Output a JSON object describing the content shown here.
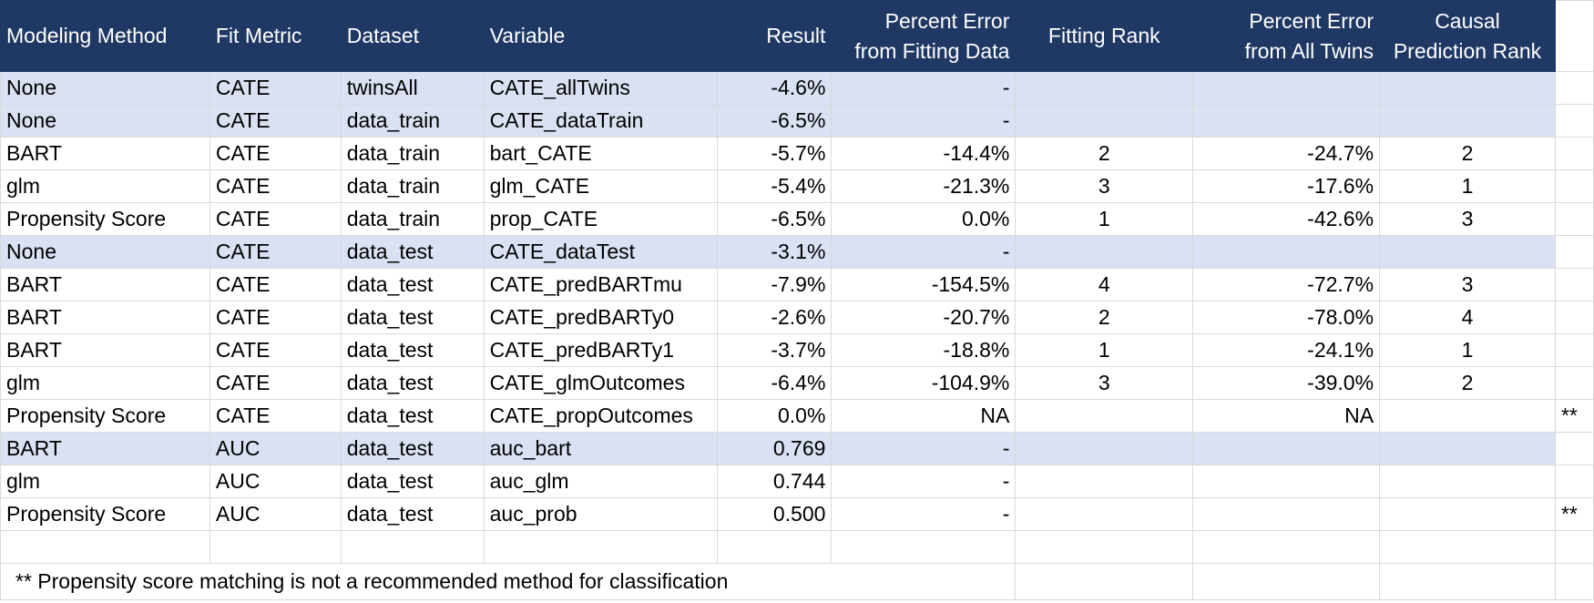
{
  "headers": [
    "Modeling Method",
    "Fit Metric",
    "Dataset",
    "Variable",
    "Result",
    "Percent Error from Fitting Data",
    "Fitting Rank",
    "Percent Error from All Twins",
    "Causal Prediction Rank"
  ],
  "header_lines": {
    "percent_error_fitting": [
      "Percent Error",
      "from Fitting Data"
    ],
    "percent_error_all": [
      "Percent Error",
      "from All Twins"
    ],
    "causal_rank": [
      "Causal",
      "Prediction Rank"
    ]
  },
  "rows": [
    {
      "method": "None",
      "metric": "CATE",
      "dataset": "twinsAll",
      "variable": "CATE_allTwins",
      "result": "-4.6%",
      "pe_fit": "-",
      "fit_rank": "",
      "pe_all": "",
      "causal_rank": "",
      "note": "",
      "shaded": true
    },
    {
      "method": "None",
      "metric": "CATE",
      "dataset": "data_train",
      "variable": "CATE_dataTrain",
      "result": "-6.5%",
      "pe_fit": "-",
      "fit_rank": "",
      "pe_all": "",
      "causal_rank": "",
      "note": "",
      "shaded": true
    },
    {
      "method": "BART",
      "metric": "CATE",
      "dataset": "data_train",
      "variable": "bart_CATE",
      "result": "-5.7%",
      "pe_fit": "-14.4%",
      "fit_rank": "2",
      "pe_all": "-24.7%",
      "causal_rank": "2",
      "note": "",
      "shaded": false
    },
    {
      "method": "glm",
      "metric": "CATE",
      "dataset": "data_train",
      "variable": "glm_CATE",
      "result": "-5.4%",
      "pe_fit": "-21.3%",
      "fit_rank": "3",
      "pe_all": "-17.6%",
      "causal_rank": "1",
      "note": "",
      "shaded": false
    },
    {
      "method": "Propensity Score",
      "metric": "CATE",
      "dataset": "data_train",
      "variable": "prop_CATE",
      "result": "-6.5%",
      "pe_fit": "0.0%",
      "fit_rank": "1",
      "pe_all": "-42.6%",
      "causal_rank": "3",
      "note": "",
      "shaded": false
    },
    {
      "method": "None",
      "metric": "CATE",
      "dataset": "data_test",
      "variable": "CATE_dataTest",
      "result": "-3.1%",
      "pe_fit": "-",
      "fit_rank": "",
      "pe_all": "",
      "causal_rank": "",
      "note": "",
      "shaded": true
    },
    {
      "method": "BART",
      "metric": "CATE",
      "dataset": "data_test",
      "variable": "CATE_predBARTmu",
      "result": "-7.9%",
      "pe_fit": "-154.5%",
      "fit_rank": "4",
      "pe_all": "-72.7%",
      "causal_rank": "3",
      "note": "",
      "shaded": false
    },
    {
      "method": "BART",
      "metric": "CATE",
      "dataset": "data_test",
      "variable": "CATE_predBARTy0",
      "result": "-2.6%",
      "pe_fit": "-20.7%",
      "fit_rank": "2",
      "pe_all": "-78.0%",
      "causal_rank": "4",
      "note": "",
      "shaded": false
    },
    {
      "method": "BART",
      "metric": "CATE",
      "dataset": "data_test",
      "variable": "CATE_predBARTy1",
      "result": "-3.7%",
      "pe_fit": "-18.8%",
      "fit_rank": "1",
      "pe_all": "-24.1%",
      "causal_rank": "1",
      "note": "",
      "shaded": false
    },
    {
      "method": "glm",
      "metric": "CATE",
      "dataset": "data_test",
      "variable": "CATE_glmOutcomes",
      "result": "-6.4%",
      "pe_fit": "-104.9%",
      "fit_rank": "3",
      "pe_all": "-39.0%",
      "causal_rank": "2",
      "note": "",
      "shaded": false
    },
    {
      "method": "Propensity Score",
      "metric": "CATE",
      "dataset": "data_test",
      "variable": "CATE_propOutcomes",
      "result": "0.0%",
      "pe_fit": "NA",
      "fit_rank": "",
      "pe_all": "NA",
      "causal_rank": "",
      "note": "**",
      "shaded": false
    },
    {
      "method": "BART",
      "metric": "AUC",
      "dataset": "data_test",
      "variable": "auc_bart",
      "result": "0.769",
      "pe_fit": "-",
      "fit_rank": "",
      "pe_all": "",
      "causal_rank": "",
      "note": "",
      "shaded": true
    },
    {
      "method": "glm",
      "metric": "AUC",
      "dataset": "data_test",
      "variable": "auc_glm",
      "result": "0.744",
      "pe_fit": "-",
      "fit_rank": "",
      "pe_all": "",
      "causal_rank": "",
      "note": "",
      "shaded": false
    },
    {
      "method": "Propensity Score",
      "metric": "AUC",
      "dataset": "data_test",
      "variable": "auc_prob",
      "result": "0.500",
      "pe_fit": "-",
      "fit_rank": "",
      "pe_all": "",
      "causal_rank": "",
      "note": "**",
      "shaded": false
    }
  ],
  "footnote": "** Propensity score matching is not a recommended method for classification",
  "colors": {
    "header_bg": "#1f3864",
    "header_text": "#ffffff",
    "shaded_row": "#d9e1f2",
    "grid": "#d9d9d9"
  }
}
